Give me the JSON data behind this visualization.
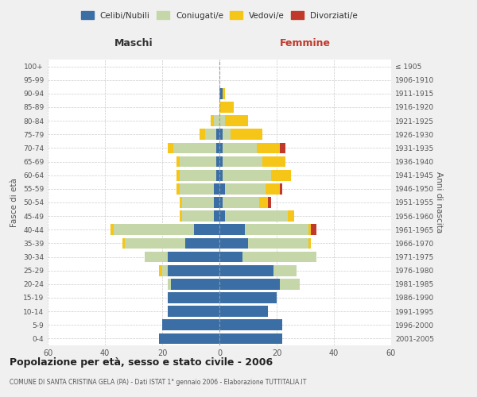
{
  "age_groups": [
    "0-4",
    "5-9",
    "10-14",
    "15-19",
    "20-24",
    "25-29",
    "30-34",
    "35-39",
    "40-44",
    "45-49",
    "50-54",
    "55-59",
    "60-64",
    "65-69",
    "70-74",
    "75-79",
    "80-84",
    "85-89",
    "90-94",
    "95-99",
    "100+"
  ],
  "birth_years": [
    "2001-2005",
    "1996-2000",
    "1991-1995",
    "1986-1990",
    "1981-1985",
    "1976-1980",
    "1971-1975",
    "1966-1970",
    "1961-1965",
    "1956-1960",
    "1951-1955",
    "1946-1950",
    "1941-1945",
    "1936-1940",
    "1931-1935",
    "1926-1930",
    "1921-1925",
    "1916-1920",
    "1911-1915",
    "1906-1910",
    "≤ 1905"
  ],
  "maschi": {
    "celibi": [
      21,
      20,
      18,
      18,
      17,
      18,
      18,
      12,
      9,
      2,
      2,
      2,
      1,
      1,
      1,
      1,
      0,
      0,
      0,
      0,
      0
    ],
    "coniugati": [
      0,
      0,
      0,
      0,
      1,
      2,
      8,
      21,
      28,
      11,
      11,
      12,
      13,
      13,
      15,
      4,
      2,
      0,
      0,
      0,
      0
    ],
    "vedovi": [
      0,
      0,
      0,
      0,
      0,
      1,
      0,
      1,
      1,
      1,
      1,
      1,
      1,
      1,
      2,
      2,
      1,
      0,
      0,
      0,
      0
    ],
    "divorziati": [
      0,
      0,
      0,
      0,
      0,
      0,
      0,
      0,
      0,
      0,
      0,
      0,
      0,
      0,
      0,
      0,
      0,
      0,
      0,
      0,
      0
    ]
  },
  "femmine": {
    "nubili": [
      22,
      22,
      17,
      20,
      21,
      19,
      8,
      10,
      9,
      2,
      1,
      2,
      1,
      1,
      1,
      1,
      0,
      0,
      1,
      0,
      0
    ],
    "coniugate": [
      0,
      0,
      0,
      0,
      7,
      8,
      26,
      21,
      22,
      22,
      13,
      14,
      17,
      14,
      12,
      3,
      2,
      0,
      0,
      0,
      0
    ],
    "vedove": [
      0,
      0,
      0,
      0,
      0,
      0,
      0,
      1,
      1,
      2,
      3,
      5,
      7,
      8,
      8,
      11,
      8,
      5,
      1,
      0,
      0
    ],
    "divorziate": [
      0,
      0,
      0,
      0,
      0,
      0,
      0,
      0,
      2,
      0,
      1,
      1,
      0,
      0,
      2,
      0,
      0,
      0,
      0,
      0,
      0
    ]
  },
  "colors": {
    "celibi_nubili": "#3A6EA5",
    "coniugati": "#C5D7A8",
    "vedovi": "#F5C518",
    "divorziati": "#C0392B"
  },
  "xlim": 60,
  "title": "Popolazione per età, sesso e stato civile - 2006",
  "subtitle": "COMUNE DI SANTA CRISTINA GELA (PA) - Dati ISTAT 1° gennaio 2006 - Elaborazione TUTTITALIA.IT",
  "ylabel_left": "Fasce di età",
  "ylabel_right": "Anni di nascita",
  "xlabel_left": "Maschi",
  "xlabel_right": "Femmine",
  "bg_color": "#f0f0f0",
  "plot_bg_color": "#ffffff"
}
